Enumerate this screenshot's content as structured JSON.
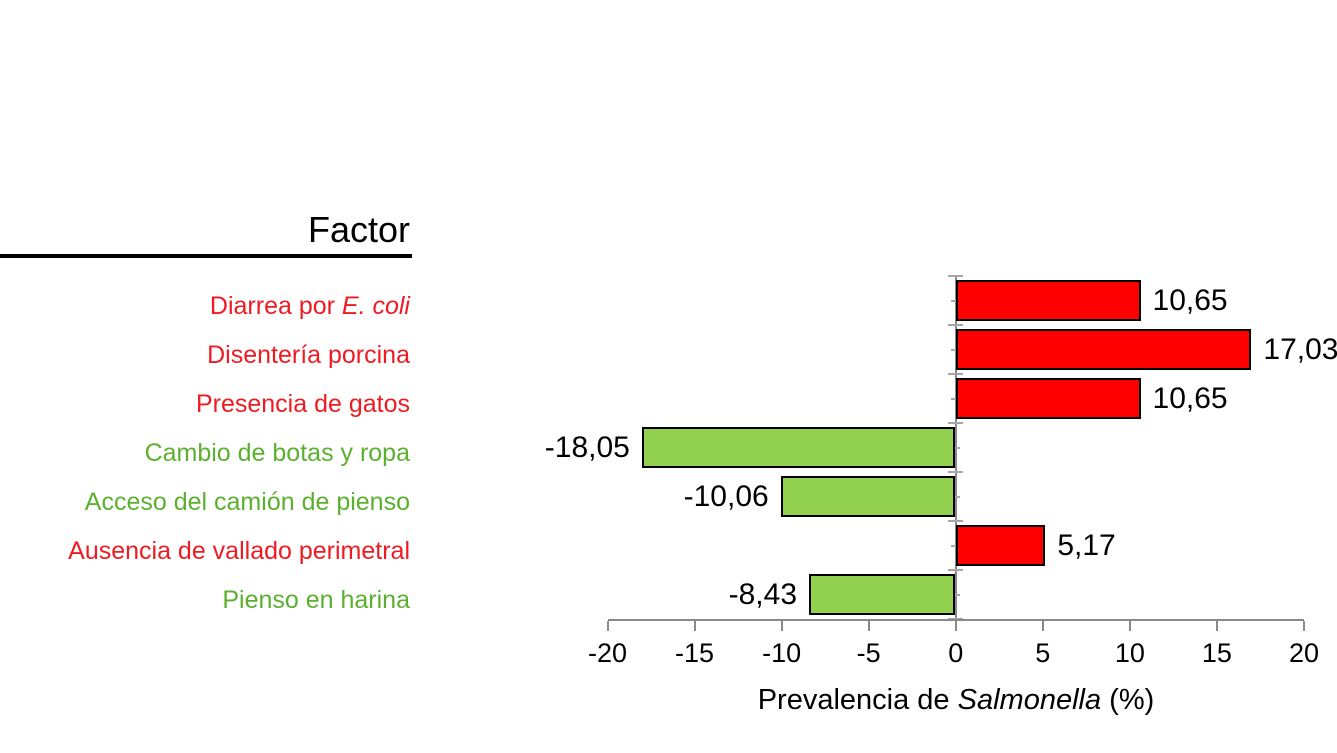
{
  "factor_header": "Factor",
  "axis": {
    "tick_labels": [
      "-20",
      "-15",
      "-10",
      "-5",
      "0",
      "5",
      "10",
      "15",
      "20"
    ],
    "title_pre": "Prevalencia de ",
    "title_italic": "Salmonella",
    "title_post": " (%)"
  },
  "colors": {
    "bar_red": "#FE0000",
    "bar_green": "#92D050",
    "text_red": "#EE1B22",
    "text_green": "#5BB12F",
    "axis_gray": "#8A8A8A",
    "tick_gray": "#A6A6A6"
  },
  "chart_data": {
    "type": "bar",
    "orientation": "horizontal",
    "title": "Factor",
    "xlabel": "Prevalencia de Salmonella (%)",
    "xlim": [
      -20,
      20
    ],
    "xstep": 5,
    "grid": false,
    "legend": false,
    "categories": [
      "Diarrea por E. coli",
      "Disentería porcina",
      "Presencia de gatos",
      "Cambio de botas y ropa",
      "Acceso del camión de pienso",
      "Ausencia de vallado perimetral",
      "Pienso en harina"
    ],
    "values": [
      10.65,
      17.03,
      10.65,
      -18.05,
      -10.06,
      5.17,
      -8.43
    ],
    "value_labels": [
      "10,65",
      "17,03",
      "10,65",
      "-18,05",
      "-10,06",
      "5,17",
      "-8,43"
    ],
    "bar_colors": [
      "red",
      "red",
      "red",
      "green",
      "green",
      "red",
      "green"
    ],
    "rows": [
      {
        "pre": "Diarrea por ",
        "italic": "E. coli",
        "post": "",
        "color": "red",
        "value": 10.65,
        "value_label": "10,65"
      },
      {
        "pre": "Disentería porcina",
        "italic": "",
        "post": "",
        "color": "red",
        "value": 17.03,
        "value_label": "17,03"
      },
      {
        "pre": "Presencia de gatos",
        "italic": "",
        "post": "",
        "color": "red",
        "value": 10.65,
        "value_label": "10,65"
      },
      {
        "pre": "Cambio de botas y ropa",
        "italic": "",
        "post": "",
        "color": "green",
        "value": -18.05,
        "value_label": "-18,05"
      },
      {
        "pre": "Acceso del camión de pienso",
        "italic": "",
        "post": "",
        "color": "green",
        "value": -10.06,
        "value_label": "-10,06"
      },
      {
        "pre": "Ausencia de vallado perimetral",
        "italic": "",
        "post": "",
        "color": "red",
        "value": 5.17,
        "value_label": "5,17"
      },
      {
        "pre": "Pienso en harina",
        "italic": "",
        "post": "",
        "color": "green",
        "value": -8.43,
        "value_label": "-8,43"
      }
    ]
  }
}
